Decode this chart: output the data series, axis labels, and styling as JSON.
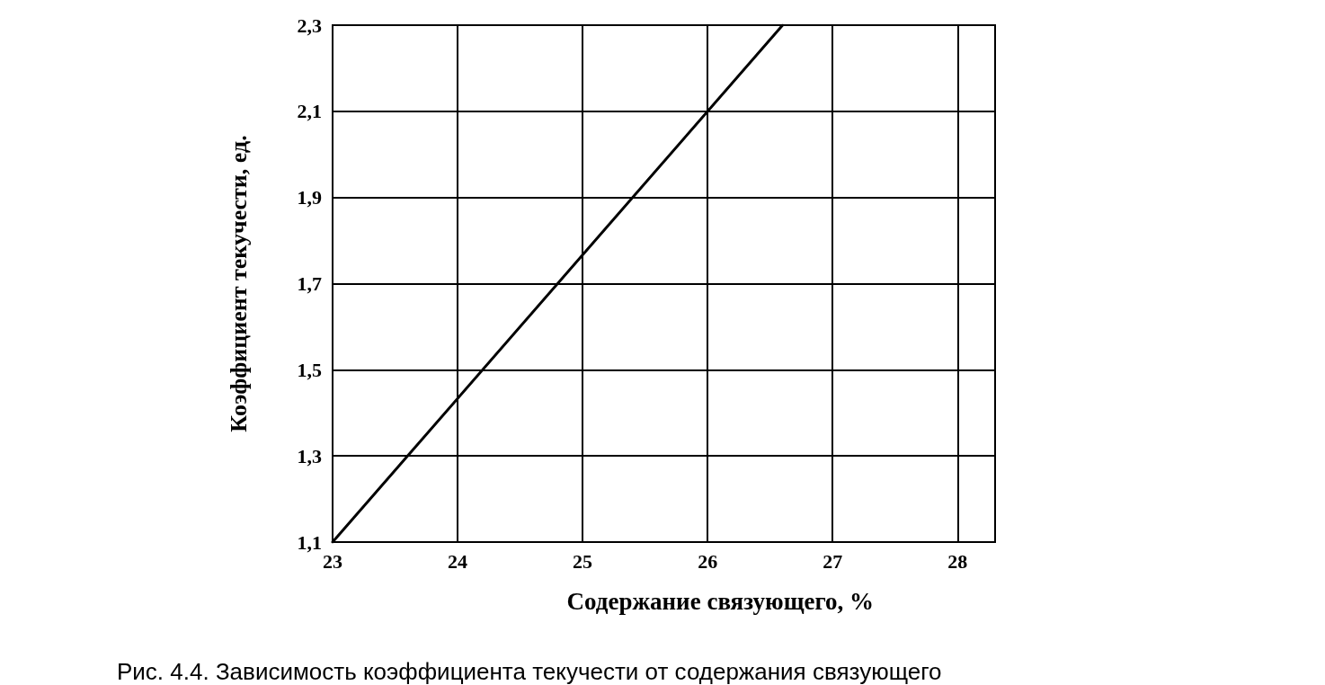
{
  "chart_data": {
    "type": "line",
    "xlabel": "Содержание связующего, %",
    "ylabel": "Коэффициент текучести, ед.",
    "x": [
      23,
      26.6
    ],
    "series": [
      {
        "color": "#000000",
        "values": [
          1.1,
          2.3
        ]
      }
    ],
    "xlim": [
      23,
      28.3
    ],
    "xticks": [
      23,
      24,
      25,
      26,
      27,
      28
    ],
    "ylim": [
      1.1,
      2.3
    ],
    "yticks": [
      {
        "value": 1.1,
        "label": "1,1"
      },
      {
        "value": 1.3,
        "label": "1,3"
      },
      {
        "value": 1.5,
        "label": "1,5"
      },
      {
        "value": 1.7,
        "label": "1,7"
      },
      {
        "value": 1.9,
        "label": "1,9"
      },
      {
        "value": 2.1,
        "label": "2,1"
      },
      {
        "value": 2.3,
        "label": "2,3"
      }
    ],
    "grid": true,
    "marker": "none",
    "line_style": "solid",
    "annotations": [
      "Рис. 4.4. Зависимость коэффициента текучести от содержания связующего"
    ]
  }
}
